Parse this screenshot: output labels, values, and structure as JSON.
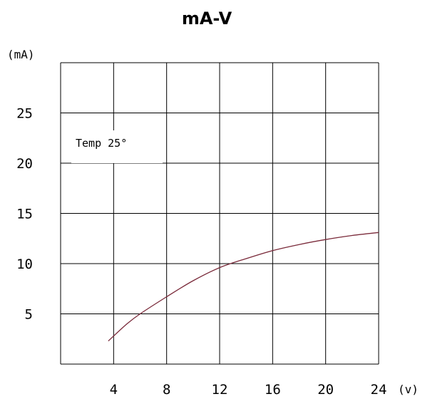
{
  "chart_data": {
    "type": "line",
    "title": "mA-V",
    "ylabel": "(mA)",
    "xlabel": "(v)",
    "xlim": [
      0,
      24
    ],
    "ylim": [
      0,
      30
    ],
    "xticks": [
      4,
      8,
      12,
      16,
      20,
      24
    ],
    "yticks": [
      5,
      10,
      15,
      20,
      25
    ],
    "xtick_labels": [
      "4",
      "8",
      "12",
      "16",
      "20",
      "24"
    ],
    "ytick_labels": [
      "5",
      "10",
      "15",
      "20",
      "25"
    ],
    "grid": true,
    "annotation": "Temp 25°",
    "line_color": "#7a2a3a",
    "series": [
      {
        "x": [
          3.6,
          5,
          6,
          8,
          10,
          12,
          14,
          16,
          18,
          20,
          22,
          24
        ],
        "y": [
          2.3,
          4.0,
          5.0,
          6.7,
          8.3,
          9.6,
          10.5,
          11.3,
          11.9,
          12.4,
          12.8,
          13.1
        ]
      }
    ]
  }
}
